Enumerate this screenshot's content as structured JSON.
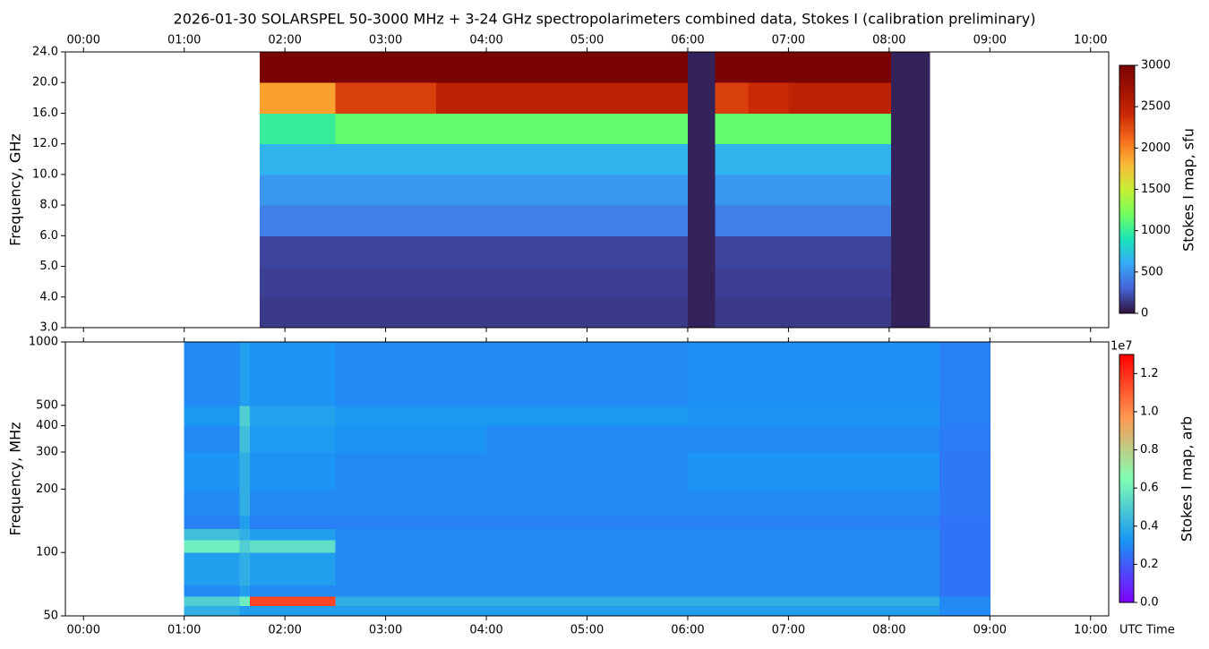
{
  "chart_data": [
    {
      "type": "heatmap",
      "title": "2026-01-30  SOLARSPEL  50-3000 MHz  +  3-24 GHz  spectropolarimeters combined data,  Stokes I  (calibration preliminary)",
      "ylabel": "Frequency, GHz",
      "colorbar_label": "Stokes I map, sfu",
      "colormap": "turbo",
      "xlim": [
        -0.18,
        10.18
      ],
      "xticks": [
        {
          "value": 0,
          "label": "00:00"
        },
        {
          "value": 1,
          "label": "01:00"
        },
        {
          "value": 2,
          "label": "02:00"
        },
        {
          "value": 3,
          "label": "03:00"
        },
        {
          "value": 4,
          "label": "04:00"
        },
        {
          "value": 5,
          "label": "05:00"
        },
        {
          "value": 6,
          "label": "06:00"
        },
        {
          "value": 7,
          "label": "07:00"
        },
        {
          "value": 8,
          "label": "08:00"
        },
        {
          "value": 9,
          "label": "09:00"
        },
        {
          "value": 10,
          "label": "10:00"
        }
      ],
      "ylim": [
        3,
        24
      ],
      "yticks": [
        {
          "value": 3,
          "label": "3.0"
        },
        {
          "value": 4,
          "label": "4.0"
        },
        {
          "value": 5,
          "label": "5.0"
        },
        {
          "value": 6,
          "label": "6.0"
        },
        {
          "value": 8,
          "label": "8.0"
        },
        {
          "value": 10,
          "label": "10.0"
        },
        {
          "value": 12,
          "label": "12.0"
        },
        {
          "value": 16,
          "label": "16.0"
        },
        {
          "value": 20,
          "label": "20.0"
        },
        {
          "value": 24,
          "label": "24.0"
        }
      ],
      "clim": [
        0,
        3000
      ],
      "cticks": [
        0,
        500,
        1000,
        1500,
        2000,
        2500,
        3000
      ],
      "x_edges": [
        1.75,
        2.5,
        3.5,
        4.5,
        5.5,
        6.0,
        6.27,
        6.6,
        7.0,
        8.02,
        8.4
      ],
      "y_edges": [
        3,
        4,
        5,
        6,
        8,
        10,
        12,
        16,
        20,
        24
      ],
      "z": [
        [
          150,
          150,
          150,
          150,
          150,
          60,
          150,
          150,
          150,
          60
        ],
        [
          170,
          170,
          170,
          170,
          170,
          60,
          170,
          170,
          170,
          60
        ],
        [
          190,
          190,
          190,
          190,
          190,
          60,
          190,
          190,
          190,
          60
        ],
        [
          420,
          420,
          420,
          420,
          420,
          60,
          420,
          420,
          420,
          60
        ],
        [
          520,
          520,
          520,
          520,
          520,
          60,
          520,
          520,
          520,
          60
        ],
        [
          650,
          650,
          650,
          650,
          650,
          60,
          650,
          650,
          650,
          60
        ],
        [
          1000,
          1150,
          1150,
          1150,
          1150,
          60,
          1150,
          1150,
          1150,
          60
        ],
        [
          1900,
          2300,
          2500,
          2500,
          2500,
          60,
          2300,
          2400,
          2500,
          60
        ],
        [
          3000,
          3000,
          3000,
          3000,
          3000,
          60,
          3000,
          3000,
          3000,
          60
        ]
      ]
    },
    {
      "type": "heatmap",
      "ylabel": "Frequency, MHz",
      "xlabel": "UTC Time",
      "colorbar_label": "Stokes I map, arb",
      "colorbar_offset": "1e7",
      "colormap": "rainbow",
      "xlim": [
        -0.18,
        10.18
      ],
      "xticks": [
        {
          "value": 0,
          "label": "00:00"
        },
        {
          "value": 1,
          "label": "01:00"
        },
        {
          "value": 2,
          "label": "02:00"
        },
        {
          "value": 3,
          "label": "03:00"
        },
        {
          "value": 4,
          "label": "04:00"
        },
        {
          "value": 5,
          "label": "05:00"
        },
        {
          "value": 6,
          "label": "06:00"
        },
        {
          "value": 7,
          "label": "07:00"
        },
        {
          "value": 8,
          "label": "08:00"
        },
        {
          "value": 9,
          "label": "09:00"
        },
        {
          "value": 10,
          "label": "10:00"
        }
      ],
      "yscale": "log",
      "ylim": [
        50,
        1000
      ],
      "yticks": [
        50,
        100,
        200,
        300,
        400,
        500,
        1000
      ],
      "clim": [
        0,
        13000000
      ],
      "cticks": [
        {
          "value": 0,
          "label": "0.0"
        },
        {
          "value": 2000000,
          "label": "0.2"
        },
        {
          "value": 4000000,
          "label": "0.4"
        },
        {
          "value": 6000000,
          "label": "0.6"
        },
        {
          "value": 8000000,
          "label": "0.8"
        },
        {
          "value": 10000000,
          "label": "1.0"
        },
        {
          "value": 12000000,
          "label": "1.2"
        }
      ],
      "x_edges": [
        1.0,
        1.55,
        1.65,
        2.5,
        4.0,
        6.0,
        8.5,
        9.0
      ],
      "y_edges": [
        50,
        56,
        62,
        70,
        100,
        115,
        130,
        150,
        200,
        300,
        400,
        500,
        1000
      ],
      "z": [
        [
          4000000,
          3500000,
          3500000,
          3500000,
          3500000,
          3500000,
          3000000
        ],
        [
          5000000,
          6000000,
          11500000,
          4000000,
          4000000,
          4000000,
          3000000
        ],
        [
          3000000,
          3500000,
          3000000,
          3000000,
          3000000,
          3000000,
          2500000
        ],
        [
          3500000,
          4000000,
          3500000,
          3000000,
          3000000,
          3000000,
          2500000
        ],
        [
          6000000,
          5000000,
          5500000,
          3000000,
          3000000,
          3000000,
          2500000
        ],
        [
          4500000,
          4000000,
          3500000,
          3000000,
          3000000,
          3000000,
          2500000
        ],
        [
          2800000,
          3500000,
          2800000,
          2800000,
          2800000,
          2800000,
          2500000
        ],
        [
          3000000,
          4000000,
          3000000,
          3000000,
          3000000,
          3000000,
          2600000
        ],
        [
          3200000,
          4000000,
          3200000,
          3000000,
          3000000,
          3200000,
          2600000
        ],
        [
          3000000,
          4500000,
          3400000,
          3200000,
          3000000,
          3000000,
          2700000
        ],
        [
          3300000,
          5000000,
          3600000,
          3300000,
          3300000,
          3200000,
          2800000
        ],
        [
          3000000,
          3500000,
          3200000,
          3000000,
          3000000,
          3100000,
          2800000
        ]
      ]
    }
  ]
}
